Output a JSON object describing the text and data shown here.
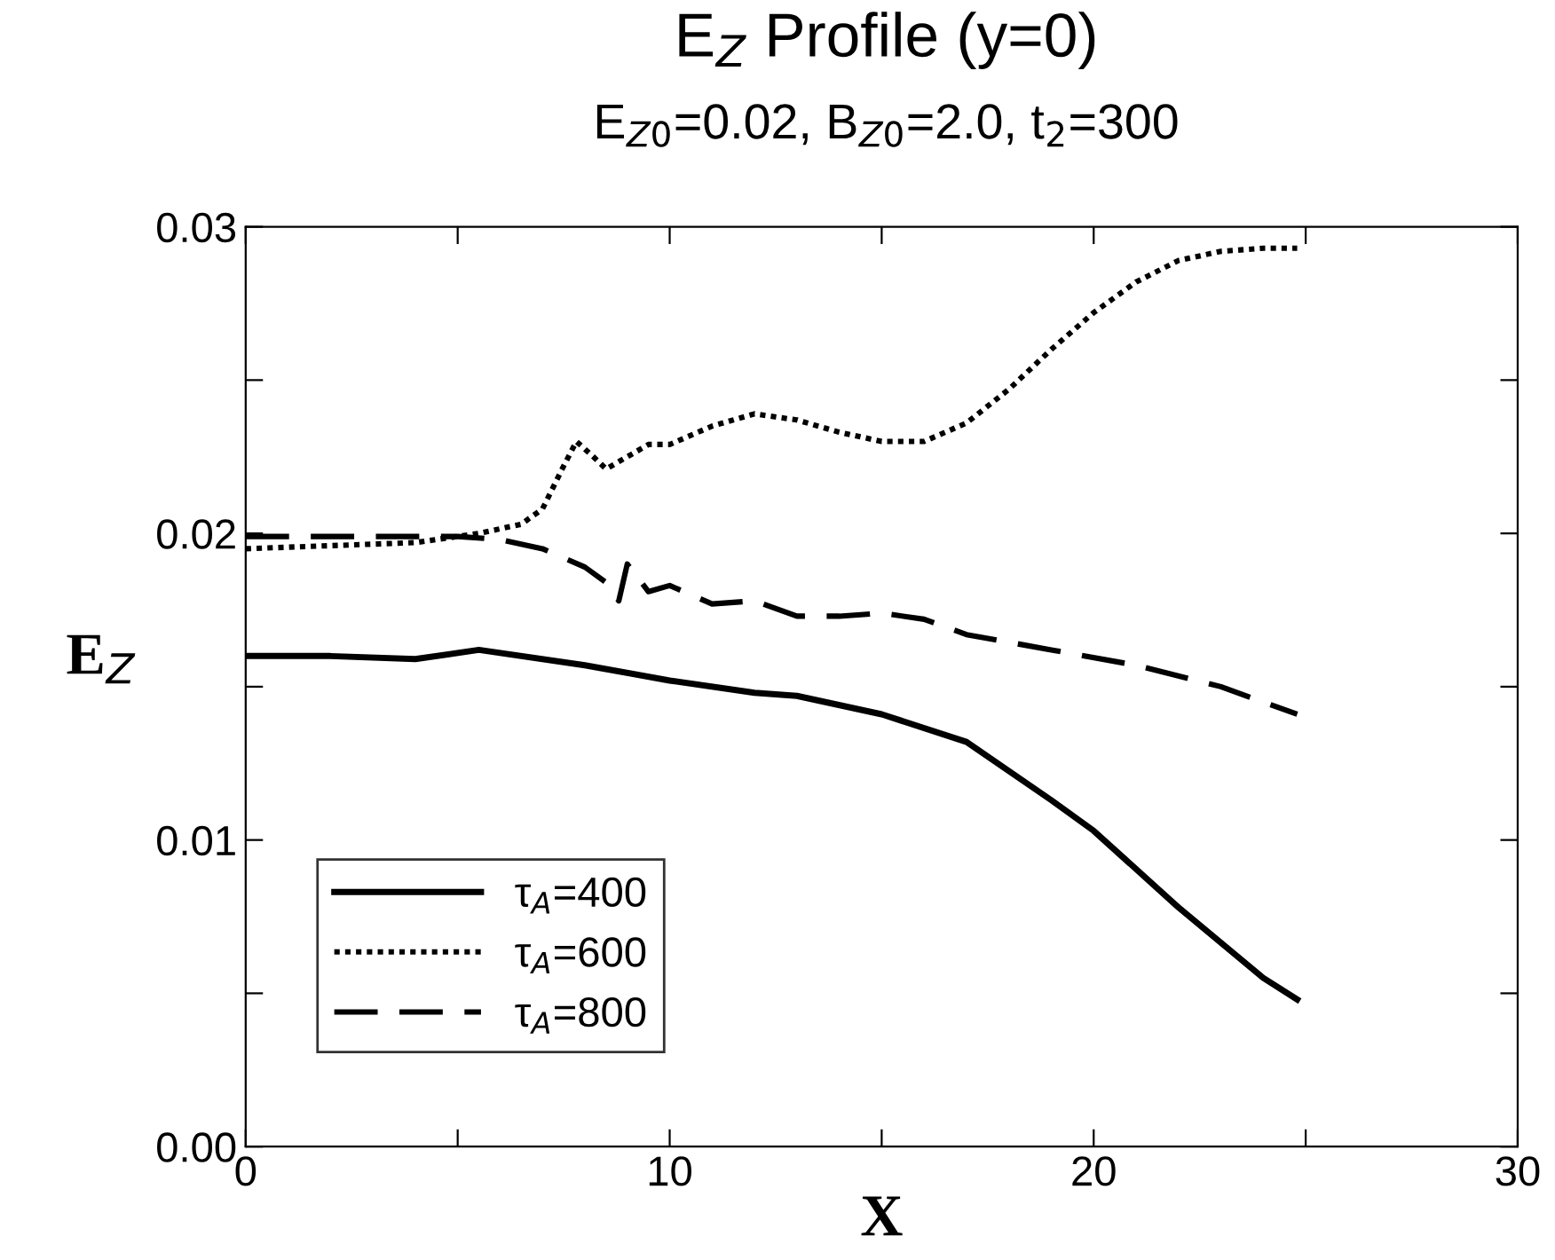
{
  "chart_data": {
    "type": "line",
    "title": "E$_{Z}$ Profile (y=0)",
    "subtitle": "E$_{Z0}$=0.02, B$_{Z0}$=2.0, t$_{2}$=300",
    "xlabel": "X",
    "ylabel": "E$_{Z}$",
    "xlim": [
      0,
      30
    ],
    "ylim": [
      0,
      0.03
    ],
    "xticks": [
      0,
      {
        "value": 5,
        "label": null
      },
      10,
      {
        "value": 15,
        "label": null
      },
      20,
      {
        "value": 25,
        "label": null
      },
      30
    ],
    "yticks": [
      {
        "value": 0,
        "label": "0.00"
      },
      {
        "value": 0.005,
        "label": null
      },
      {
        "value": 0.01,
        "label": "0.01"
      },
      {
        "value": 0.015,
        "label": null
      },
      {
        "value": 0.02,
        "label": "0.02"
      },
      {
        "value": 0.025,
        "label": null
      },
      {
        "value": 0.03,
        "label": "0.03"
      }
    ],
    "legend": "bottom left",
    "grid": false,
    "series": [
      {
        "name": "τ$_{A}$=400",
        "color": "#000000",
        "line_style": "solid",
        "x": [
          0,
          2,
          4,
          5.5,
          8,
          10,
          12,
          13,
          15,
          17,
          19,
          20,
          22,
          24,
          24.8
        ],
        "values": [
          0.016,
          0.016,
          0.0159,
          0.0162,
          0.0157,
          0.0152,
          0.0148,
          0.0147,
          0.0141,
          0.0132,
          0.0113,
          0.0103,
          0.0078,
          0.0055,
          0.0048
        ]
      },
      {
        "name": "τ$_{A}$=600",
        "color": "#000000",
        "line_style": "dotted",
        "x": [
          0,
          2,
          4,
          5.5,
          6.5,
          7,
          7.5,
          7.8,
          8.2,
          8.5,
          9,
          9.5,
          10,
          11,
          12,
          13,
          14,
          15,
          16,
          17,
          18,
          19,
          20,
          21,
          22,
          23,
          24,
          24.8
        ],
        "values": [
          0.0195,
          0.0196,
          0.0197,
          0.02,
          0.0203,
          0.0208,
          0.0222,
          0.023,
          0.0225,
          0.0221,
          0.0225,
          0.0229,
          0.0229,
          0.0235,
          0.0239,
          0.0237,
          0.0233,
          0.023,
          0.023,
          0.0236,
          0.0247,
          0.026,
          0.0272,
          0.0282,
          0.0289,
          0.0292,
          0.0293,
          0.0293
        ]
      },
      {
        "name": "τ$_{A}$=800",
        "color": "#000000",
        "line_style": "dashed",
        "x": [
          0,
          2,
          5,
          6,
          7,
          8,
          8.5,
          8.8,
          9,
          9.5,
          10,
          11,
          12,
          13,
          14,
          15,
          16,
          17,
          19,
          21,
          23,
          24.8
        ],
        "values": [
          0.0199,
          0.0199,
          0.0199,
          0.0198,
          0.0195,
          0.0189,
          0.0184,
          0.0178,
          0.019,
          0.0181,
          0.0183,
          0.0177,
          0.0178,
          0.0173,
          0.0173,
          0.0174,
          0.0172,
          0.0167,
          0.0162,
          0.0157,
          0.015,
          0.0141
        ]
      }
    ]
  }
}
